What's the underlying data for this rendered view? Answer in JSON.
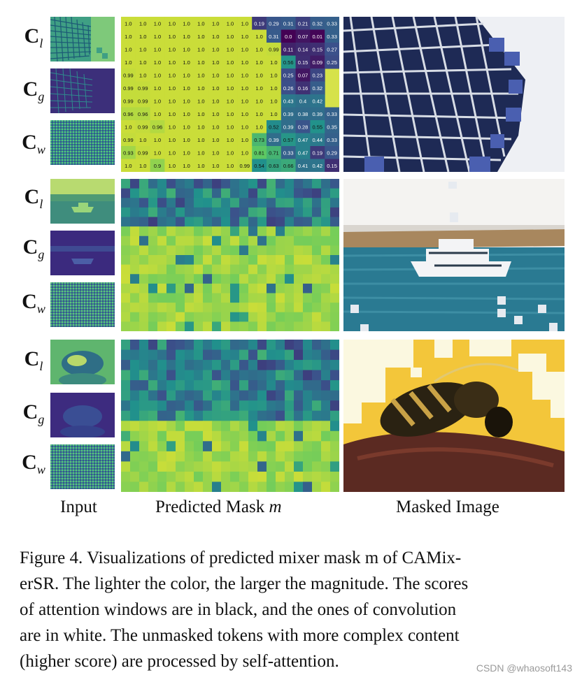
{
  "figure": {
    "row_labels": [
      {
        "base": "C",
        "sub": "l"
      },
      {
        "base": "C",
        "sub": "g"
      },
      {
        "base": "C",
        "sub": "w"
      }
    ],
    "column_labels": {
      "input": "Input",
      "mask_prefix": "Predicted Mask ",
      "mask_var": "m",
      "masked": "Masked Image"
    },
    "groups": [
      {
        "subject": "building facade",
        "colors": {
          "sky": "#eef0f4",
          "facade": "#1e2a55",
          "window": "#d8dde6",
          "mask_block": "#4a5fb0"
        },
        "mask_rows": [
          [
            "1.0",
            "1.0",
            "1.0",
            "1.0",
            "1.0",
            "1.0",
            "1.0",
            "1.0",
            "1.0",
            "0.19",
            "0.29",
            "0.31",
            "0.21",
            "0.32",
            "0.33"
          ],
          [
            "1.0",
            "1.0",
            "1.0",
            "1.0",
            "1.0",
            "1.0",
            "1.0",
            "1.0",
            "1.0",
            "1.0",
            "0.31",
            "0.0",
            "0.07",
            "0.01",
            "0.33"
          ],
          [
            "1.0",
            "1.0",
            "1.0",
            "1.0",
            "1.0",
            "1.0",
            "1.0",
            "1.0",
            "1.0",
            "1.0",
            "0.99",
            "0.11",
            "0.14",
            "0.15",
            "0.27"
          ],
          [
            "1.0",
            "1.0",
            "1.0",
            "1.0",
            "1.0",
            "1.0",
            "1.0",
            "1.0",
            "1.0",
            "1.0",
            "1.0",
            "0.56",
            "0.15",
            "0.09",
            "0.25"
          ],
          [
            "0.99",
            "1.0",
            "1.0",
            "1.0",
            "1.0",
            "1.0",
            "1.0",
            "1.0",
            "1.0",
            "1.0",
            "1.0",
            "0.25",
            "0.07",
            "0.23"
          ],
          [
            "0.99",
            "0.99",
            "1.0",
            "1.0",
            "1.0",
            "1.0",
            "1.0",
            "1.0",
            "1.0",
            "1.0",
            "1.0",
            "0.26",
            "0.16",
            "0.32"
          ],
          [
            "0.99",
            "0.99",
            "1.0",
            "1.0",
            "1.0",
            "1.0",
            "1.0",
            "1.0",
            "1.0",
            "1.0",
            "1.0",
            "0.43",
            "0.4",
            "0.42"
          ],
          [
            "0.96",
            "0.96",
            "1.0",
            "1.0",
            "1.0",
            "1.0",
            "1.0",
            "1.0",
            "1.0",
            "1.0",
            "1.0",
            "0.39",
            "0.38",
            "0.39",
            "0.33"
          ],
          [
            "1.0",
            "0.99",
            "0.96",
            "1.0",
            "1.0",
            "1.0",
            "1.0",
            "1.0",
            "1.0",
            "1.0",
            "0.52",
            "0.39",
            "0.28",
            "0.55",
            "0.35"
          ],
          [
            "0.99",
            "1.0",
            "1.0",
            "1.0",
            "1.0",
            "1.0",
            "1.0",
            "1.0",
            "1.0",
            "0.73",
            "0.39",
            "0.57",
            "0.47",
            "0.44",
            "0.33"
          ],
          [
            "0.93",
            "0.99",
            "1.0",
            "1.0",
            "1.0",
            "1.0",
            "1.0",
            "1.0",
            "1.0",
            "0.81",
            "0.71",
            "0.33",
            "0.47",
            "0.19",
            "0.29",
            "0.19"
          ],
          [
            "1.0",
            "1.0",
            "0.9",
            "1.0",
            "1.0",
            "1.0",
            "1.0",
            "1.0",
            "0.99",
            "0.54",
            "0.63",
            "0.66",
            "0.41",
            "0.42",
            "0.15",
            "0.32"
          ]
        ]
      },
      {
        "subject": "yacht on sea",
        "colors": {
          "sky": "#f4f3f1",
          "land": "#a8875e",
          "sea": "#2a7a92",
          "hull": "#f3f4f6",
          "mask_block": "#e6eaf0"
        },
        "mask_row_count": 16,
        "mask_col_count": 24
      },
      {
        "subject": "bee on sunflower",
        "colors": {
          "bg": "#f3c63a",
          "bee_body": "#2a2212",
          "stripe": "#c9a246",
          "flower": "#5b2a22",
          "mask_block": "#fbf8e0"
        },
        "mask_row_count": 15,
        "mask_col_count": 24
      }
    ]
  },
  "caption": {
    "lines": [
      "Figure 4.  Visualizations of predicted mixer mask m of CAMix-",
      "erSR. The lighter the color, the larger the magnitude.  The scores",
      "of attention windows are in black, and the ones of convolution",
      "are in white.  The unmasked tokens with more complex content",
      "(higher score) are processed by self-attention."
    ]
  },
  "watermark": "CSDN @whaosoft143"
}
